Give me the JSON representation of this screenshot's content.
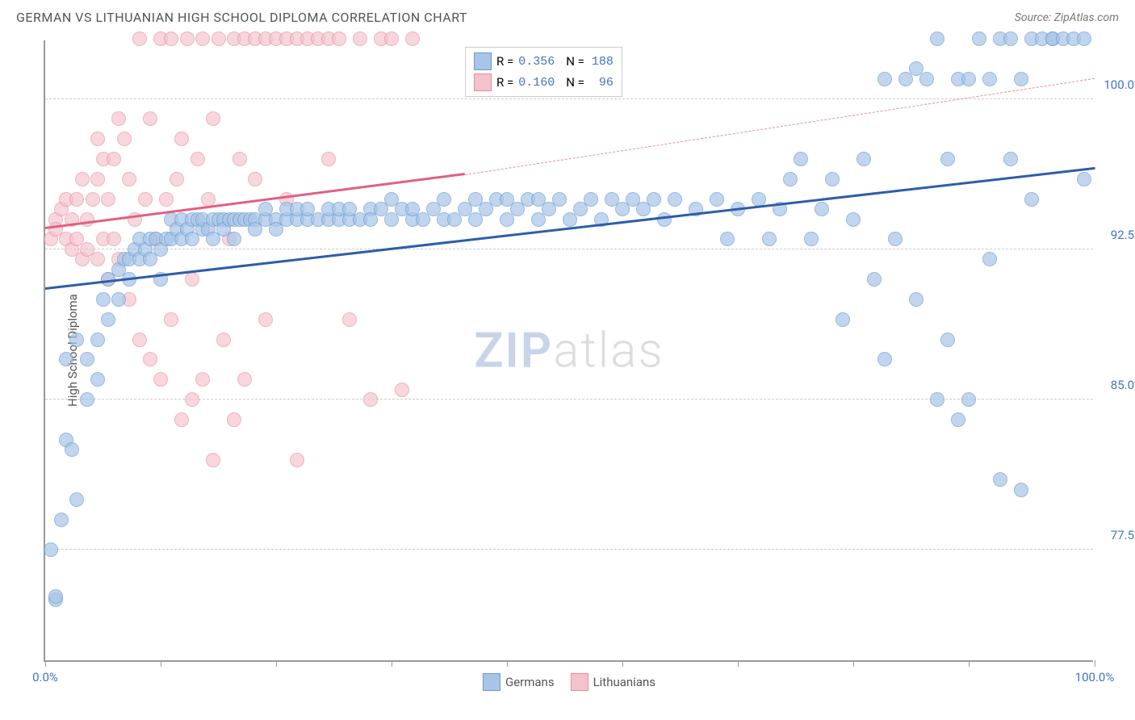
{
  "header": {
    "title": "GERMAN VS LITHUANIAN HIGH SCHOOL DIPLOMA CORRELATION CHART",
    "source": "Source: ZipAtlas.com"
  },
  "chart": {
    "type": "scatter",
    "ylabel": "High School Diploma",
    "background_color": "#ffffff",
    "grid_color": "#cccccc",
    "xlim": [
      0,
      100
    ],
    "ylim": [
      72,
      103
    ],
    "xticks": [
      0,
      11,
      22,
      33,
      44,
      55,
      66,
      77,
      88,
      100
    ],
    "xtick_labels": {
      "0": "0.0%",
      "100": "100.0%"
    },
    "yticks": [
      77.5,
      85.0,
      92.5,
      100.0
    ],
    "ytick_labels": [
      "77.5%",
      "85.0%",
      "92.5%",
      "100.0%"
    ],
    "point_radius": 9,
    "point_border_width": 1.5,
    "series": {
      "germans": {
        "label": "Germans",
        "fill": "#a8c5e8",
        "stroke": "#6b9bd1",
        "opacity": 0.7,
        "R": "0.356",
        "N": "188",
        "trend": {
          "x1": 0,
          "y1": 90.5,
          "x2": 100,
          "y2": 96.5,
          "color": "#2e5da8",
          "width": 2.5
        },
        "points": [
          [
            0.5,
            77.5
          ],
          [
            1,
            75
          ],
          [
            1,
            75.2
          ],
          [
            1.5,
            79
          ],
          [
            2,
            83
          ],
          [
            2.5,
            82.5
          ],
          [
            3,
            80
          ],
          [
            2,
            87
          ],
          [
            3,
            88
          ],
          [
            4,
            85
          ],
          [
            4,
            87
          ],
          [
            5,
            86
          ],
          [
            5,
            88
          ],
          [
            5.5,
            90
          ],
          [
            6,
            89
          ],
          [
            6,
            91
          ],
          [
            7,
            90
          ],
          [
            7,
            91.5
          ],
          [
            7.5,
            92
          ],
          [
            8,
            91
          ],
          [
            8,
            92
          ],
          [
            8.5,
            92.5
          ],
          [
            9,
            92
          ],
          [
            9,
            93
          ],
          [
            9.5,
            92.5
          ],
          [
            10,
            93
          ],
          [
            10,
            92
          ],
          [
            10.5,
            93
          ],
          [
            11,
            91
          ],
          [
            11,
            92.5
          ],
          [
            11.5,
            93
          ],
          [
            12,
            93
          ],
          [
            12,
            94
          ],
          [
            12.5,
            93.5
          ],
          [
            13,
            93
          ],
          [
            13,
            94
          ],
          [
            13.5,
            93.5
          ],
          [
            14,
            93
          ],
          [
            14,
            94
          ],
          [
            14.5,
            94
          ],
          [
            15,
            93.5
          ],
          [
            15,
            94
          ],
          [
            15.5,
            93.5
          ],
          [
            16,
            94
          ],
          [
            16,
            93
          ],
          [
            16.5,
            94
          ],
          [
            17,
            94
          ],
          [
            17,
            93.5
          ],
          [
            17.5,
            94
          ],
          [
            18,
            94
          ],
          [
            18,
            93
          ],
          [
            18.5,
            94
          ],
          [
            19,
            94
          ],
          [
            19.5,
            94
          ],
          [
            20,
            94
          ],
          [
            20,
            93.5
          ],
          [
            21,
            94
          ],
          [
            21,
            94.5
          ],
          [
            22,
            94
          ],
          [
            22,
            93.5
          ],
          [
            23,
            94
          ],
          [
            23,
            94.5
          ],
          [
            24,
            94
          ],
          [
            24,
            94.5
          ],
          [
            25,
            94
          ],
          [
            25,
            94.5
          ],
          [
            26,
            94
          ],
          [
            27,
            94
          ],
          [
            27,
            94.5
          ],
          [
            28,
            94
          ],
          [
            28,
            94.5
          ],
          [
            29,
            94
          ],
          [
            29,
            94.5
          ],
          [
            30,
            94
          ],
          [
            31,
            94.5
          ],
          [
            31,
            94
          ],
          [
            32,
            94.5
          ],
          [
            33,
            94
          ],
          [
            33,
            95
          ],
          [
            34,
            94.5
          ],
          [
            35,
            94
          ],
          [
            35,
            94.5
          ],
          [
            36,
            94
          ],
          [
            37,
            94.5
          ],
          [
            38,
            94
          ],
          [
            38,
            95
          ],
          [
            39,
            94
          ],
          [
            40,
            94.5
          ],
          [
            41,
            94
          ],
          [
            41,
            95
          ],
          [
            42,
            94.5
          ],
          [
            43,
            95
          ],
          [
            44,
            94
          ],
          [
            44,
            95
          ],
          [
            45,
            94.5
          ],
          [
            46,
            95
          ],
          [
            47,
            94
          ],
          [
            47,
            95
          ],
          [
            48,
            94.5
          ],
          [
            49,
            95
          ],
          [
            50,
            94
          ],
          [
            51,
            94.5
          ],
          [
            52,
            95
          ],
          [
            53,
            94
          ],
          [
            54,
            95
          ],
          [
            55,
            94.5
          ],
          [
            56,
            95
          ],
          [
            57,
            94.5
          ],
          [
            58,
            95
          ],
          [
            59,
            94
          ],
          [
            60,
            95
          ],
          [
            62,
            94.5
          ],
          [
            64,
            95
          ],
          [
            65,
            93
          ],
          [
            66,
            94.5
          ],
          [
            68,
            95
          ],
          [
            69,
            93
          ],
          [
            70,
            94.5
          ],
          [
            71,
            96
          ],
          [
            72,
            97
          ],
          [
            73,
            93
          ],
          [
            74,
            94.5
          ],
          [
            75,
            96
          ],
          [
            76,
            89
          ],
          [
            77,
            94
          ],
          [
            78,
            97
          ],
          [
            79,
            91
          ],
          [
            80,
            87
          ],
          [
            80,
            101
          ],
          [
            81,
            93
          ],
          [
            82,
            101
          ],
          [
            83,
            101.5
          ],
          [
            83,
            90
          ],
          [
            84,
            101
          ],
          [
            85,
            103
          ],
          [
            85,
            85
          ],
          [
            86,
            88
          ],
          [
            86,
            97
          ],
          [
            87,
            84
          ],
          [
            87,
            101
          ],
          [
            88,
            101
          ],
          [
            88,
            85
          ],
          [
            89,
            103
          ],
          [
            90,
            92
          ],
          [
            90,
            101
          ],
          [
            91,
            103
          ],
          [
            91,
            81
          ],
          [
            92,
            103
          ],
          [
            92,
            97
          ],
          [
            93,
            101
          ],
          [
            93,
            80.5
          ],
          [
            94,
            103
          ],
          [
            94,
            95
          ],
          [
            95,
            103
          ],
          [
            96,
            103
          ],
          [
            96,
            103
          ],
          [
            97,
            103
          ],
          [
            98,
            103
          ],
          [
            99,
            103
          ],
          [
            99,
            96
          ]
        ]
      },
      "lithuanians": {
        "label": "Lithuanians",
        "fill": "#f4c2cc",
        "stroke": "#e88a9b",
        "opacity": 0.65,
        "R": "0.160",
        "N": "96",
        "trend_solid": {
          "x1": 0,
          "y1": 93.5,
          "x2": 40,
          "y2": 96.2,
          "color": "#e06080",
          "width": 2.5
        },
        "trend_dashed": {
          "x1": 40,
          "y1": 96.2,
          "x2": 100,
          "y2": 101,
          "color": "#e88a9b",
          "width": 1.5
        },
        "points": [
          [
            0.5,
            93
          ],
          [
            1,
            94
          ],
          [
            1,
            93.5
          ],
          [
            1.5,
            94.5
          ],
          [
            2,
            93
          ],
          [
            2,
            95
          ],
          [
            2.5,
            92.5
          ],
          [
            2.5,
            94
          ],
          [
            3,
            93
          ],
          [
            3,
            95
          ],
          [
            3.5,
            92
          ],
          [
            3.5,
            96
          ],
          [
            4,
            94
          ],
          [
            4,
            92.5
          ],
          [
            4.5,
            95
          ],
          [
            5,
            92
          ],
          [
            5,
            96
          ],
          [
            5,
            98
          ],
          [
            5.5,
            93
          ],
          [
            5.5,
            97
          ],
          [
            6,
            91
          ],
          [
            6,
            95
          ],
          [
            6.5,
            93
          ],
          [
            6.5,
            97
          ],
          [
            7,
            99
          ],
          [
            7,
            92
          ],
          [
            7.5,
            98
          ],
          [
            8,
            90
          ],
          [
            8,
            96
          ],
          [
            8.5,
            94
          ],
          [
            9,
            103
          ],
          [
            9,
            88
          ],
          [
            9.5,
            95
          ],
          [
            10,
            87
          ],
          [
            10,
            99
          ],
          [
            10.5,
            93
          ],
          [
            11,
            103
          ],
          [
            11,
            86
          ],
          [
            11.5,
            95
          ],
          [
            12,
            89
          ],
          [
            12,
            103
          ],
          [
            12.5,
            96
          ],
          [
            13,
            84
          ],
          [
            13,
            98
          ],
          [
            13.5,
            103
          ],
          [
            14,
            91
          ],
          [
            14,
            85
          ],
          [
            14.5,
            97
          ],
          [
            15,
            103
          ],
          [
            15,
            86
          ],
          [
            15.5,
            95
          ],
          [
            16,
            82
          ],
          [
            16,
            99
          ],
          [
            16.5,
            103
          ],
          [
            17,
            88
          ],
          [
            17.5,
            93
          ],
          [
            18,
            103
          ],
          [
            18,
            84
          ],
          [
            18.5,
            97
          ],
          [
            19,
            103
          ],
          [
            19,
            86
          ],
          [
            20,
            96
          ],
          [
            20,
            103
          ],
          [
            21,
            103
          ],
          [
            21,
            89
          ],
          [
            22,
            103
          ],
          [
            23,
            103
          ],
          [
            23,
            95
          ],
          [
            24,
            82
          ],
          [
            24,
            103
          ],
          [
            25,
            103
          ],
          [
            26,
            103
          ],
          [
            27,
            97
          ],
          [
            27,
            103
          ],
          [
            28,
            103
          ],
          [
            29,
            89
          ],
          [
            30,
            103
          ],
          [
            31,
            85
          ],
          [
            32,
            103
          ],
          [
            33,
            103
          ],
          [
            34,
            85.5
          ],
          [
            35,
            103
          ]
        ]
      }
    },
    "legend_bottom": [
      {
        "label": "Germans",
        "fill": "#a8c5e8",
        "stroke": "#6b9bd1"
      },
      {
        "label": "Lithuanians",
        "fill": "#f4c2cc",
        "stroke": "#e88a9b"
      }
    ],
    "watermark": {
      "zip": "ZIP",
      "atlas": "atlas"
    }
  }
}
